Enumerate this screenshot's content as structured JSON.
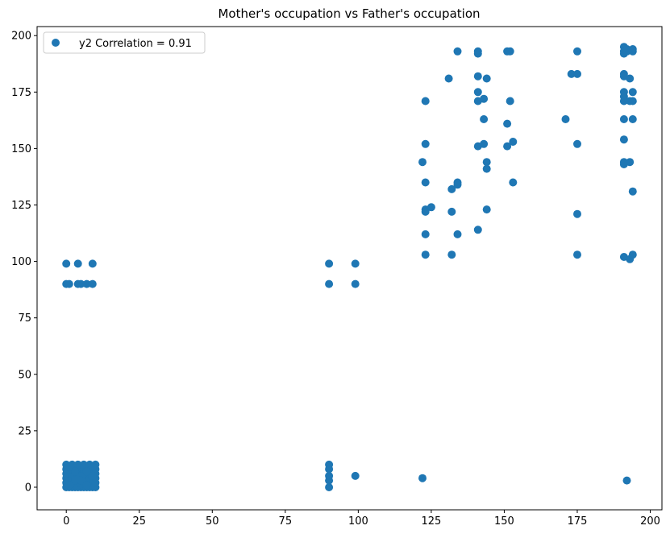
{
  "chart_data": {
    "type": "scatter",
    "title": "Mother's occupation vs Father's occupation",
    "xlabel": "",
    "ylabel": "",
    "xlim": [
      -10,
      204
    ],
    "ylim": [
      -10,
      204
    ],
    "xticks": [
      0,
      25,
      50,
      75,
      100,
      125,
      150,
      175,
      200
    ],
    "yticks": [
      0,
      25,
      50,
      75,
      100,
      125,
      150,
      175,
      200
    ],
    "grid": false,
    "legend_position": "top-left",
    "color": "#1f77b4",
    "series": [
      {
        "name": "y2 Correlation = 0.91",
        "points": [
          [
            0,
            99
          ],
          [
            0,
            90
          ],
          [
            1,
            90
          ],
          [
            4,
            99
          ],
          [
            4,
            90
          ],
          [
            5,
            90
          ],
          [
            7,
            90
          ],
          [
            9,
            99
          ],
          [
            9,
            90
          ],
          [
            0,
            0
          ],
          [
            1,
            0
          ],
          [
            2,
            0
          ],
          [
            3,
            0
          ],
          [
            4,
            0
          ],
          [
            5,
            0
          ],
          [
            6,
            0
          ],
          [
            7,
            0
          ],
          [
            8,
            0
          ],
          [
            9,
            0
          ],
          [
            10,
            0
          ],
          [
            0,
            2
          ],
          [
            2,
            2
          ],
          [
            4,
            2
          ],
          [
            6,
            2
          ],
          [
            8,
            2
          ],
          [
            10,
            2
          ],
          [
            0,
            4
          ],
          [
            1,
            4
          ],
          [
            2,
            4
          ],
          [
            3,
            4
          ],
          [
            4,
            4
          ],
          [
            5,
            4
          ],
          [
            6,
            4
          ],
          [
            7,
            4
          ],
          [
            8,
            4
          ],
          [
            9,
            4
          ],
          [
            10,
            4
          ],
          [
            0,
            6
          ],
          [
            2,
            6
          ],
          [
            4,
            6
          ],
          [
            6,
            6
          ],
          [
            8,
            6
          ],
          [
            10,
            6
          ],
          [
            0,
            8
          ],
          [
            1,
            8
          ],
          [
            2,
            8
          ],
          [
            3,
            8
          ],
          [
            4,
            8
          ],
          [
            5,
            8
          ],
          [
            6,
            8
          ],
          [
            7,
            8
          ],
          [
            8,
            8
          ],
          [
            9,
            8
          ],
          [
            10,
            8
          ],
          [
            0,
            10
          ],
          [
            2,
            10
          ],
          [
            4,
            10
          ],
          [
            6,
            10
          ],
          [
            8,
            10
          ],
          [
            10,
            10
          ],
          [
            1,
            1
          ],
          [
            3,
            3
          ],
          [
            5,
            5
          ],
          [
            7,
            7
          ],
          [
            9,
            9
          ],
          [
            1,
            9
          ],
          [
            3,
            7
          ],
          [
            5,
            3
          ],
          [
            7,
            1
          ],
          [
            9,
            5
          ],
          [
            90,
            99
          ],
          [
            90,
            90
          ],
          [
            99,
            99
          ],
          [
            99,
            90
          ],
          [
            90,
            10
          ],
          [
            90,
            8
          ],
          [
            90,
            5
          ],
          [
            90,
            3
          ],
          [
            90,
            0
          ],
          [
            99,
            5
          ],
          [
            122,
            4
          ],
          [
            122,
            144
          ],
          [
            123,
            171
          ],
          [
            123,
            152
          ],
          [
            123,
            135
          ],
          [
            123,
            123
          ],
          [
            123,
            122
          ],
          [
            123,
            112
          ],
          [
            123,
            103
          ],
          [
            125,
            124
          ],
          [
            131,
            181
          ],
          [
            132,
            132
          ],
          [
            132,
            122
          ],
          [
            132,
            103
          ],
          [
            134,
            193
          ],
          [
            134,
            135
          ],
          [
            134,
            134
          ],
          [
            134,
            112
          ],
          [
            141,
            193
          ],
          [
            141,
            192
          ],
          [
            141,
            182
          ],
          [
            141,
            175
          ],
          [
            141,
            171
          ],
          [
            141,
            151
          ],
          [
            141,
            114
          ],
          [
            143,
            172
          ],
          [
            143,
            163
          ],
          [
            143,
            152
          ],
          [
            144,
            181
          ],
          [
            144,
            144
          ],
          [
            144,
            141
          ],
          [
            144,
            123
          ],
          [
            151,
            193
          ],
          [
            151,
            161
          ],
          [
            151,
            151
          ],
          [
            152,
            193
          ],
          [
            152,
            171
          ],
          [
            153,
            153
          ],
          [
            153,
            135
          ],
          [
            171,
            163
          ],
          [
            173,
            183
          ],
          [
            175,
            193
          ],
          [
            175,
            183
          ],
          [
            175,
            152
          ],
          [
            175,
            121
          ],
          [
            175,
            103
          ],
          [
            191,
            195
          ],
          [
            191,
            193
          ],
          [
            191,
            192
          ],
          [
            191,
            183
          ],
          [
            191,
            182
          ],
          [
            191,
            175
          ],
          [
            191,
            173
          ],
          [
            191,
            171
          ],
          [
            191,
            163
          ],
          [
            191,
            154
          ],
          [
            191,
            144
          ],
          [
            191,
            143
          ],
          [
            191,
            102
          ],
          [
            192,
            3
          ],
          [
            192,
            194
          ],
          [
            192,
            193
          ],
          [
            193,
            181
          ],
          [
            193,
            171
          ],
          [
            193,
            144
          ],
          [
            193,
            101
          ],
          [
            194,
            194
          ],
          [
            194,
            193
          ],
          [
            194,
            175
          ],
          [
            194,
            171
          ],
          [
            194,
            163
          ],
          [
            194,
            131
          ],
          [
            194,
            103
          ]
        ]
      }
    ]
  }
}
